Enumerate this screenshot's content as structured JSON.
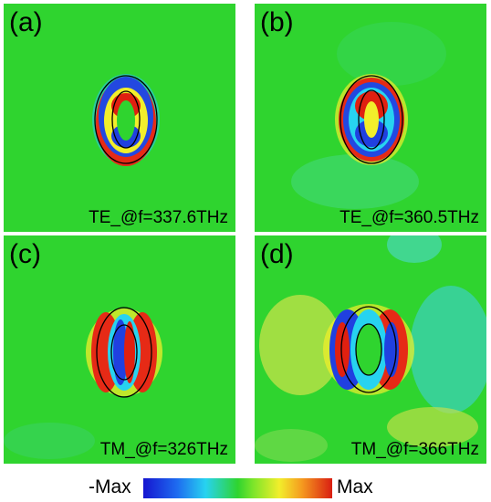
{
  "panels": [
    {
      "label": "(a)",
      "caption": "TE_@f=337.6THz"
    },
    {
      "label": "(b)",
      "caption": "TE_@f=360.5THz"
    },
    {
      "label": "(c)",
      "caption": "TM_@f=326THz"
    },
    {
      "label": "(d)",
      "caption": "TM_@f=366THz"
    }
  ],
  "colorbar": {
    "min_label": "-Max",
    "max_label": "Max"
  },
  "colors": {
    "field_background": "#2fd42f",
    "negative": "#1515d0",
    "positive": "#d91e12"
  }
}
